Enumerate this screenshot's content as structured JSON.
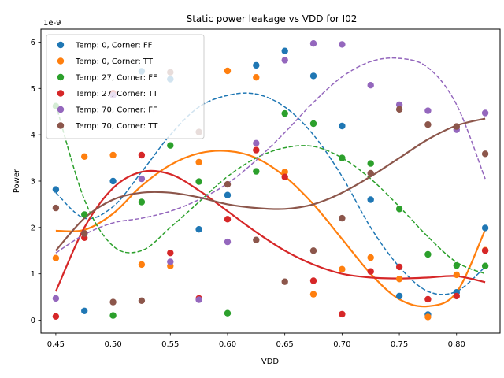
{
  "chart_data": {
    "type": "scatter",
    "title": "Static power leakage vs VDD for I02",
    "xlabel": "VDD",
    "ylabel": "Power",
    "y_offset_label": "1e-9",
    "xlim": [
      0.437,
      0.838
    ],
    "ylim": [
      -0.28,
      6.28
    ],
    "x_ticks": [
      0.45,
      0.5,
      0.55,
      0.6,
      0.65,
      0.7,
      0.75,
      0.8
    ],
    "x_tick_labels": [
      "0.45",
      "0.50",
      "0.55",
      "0.60",
      "0.65",
      "0.70",
      "0.75",
      "0.80"
    ],
    "y_ticks": [
      0,
      1,
      2,
      3,
      4,
      5,
      6
    ],
    "y_tick_labels": [
      "0",
      "1",
      "2",
      "3",
      "4",
      "5",
      "6"
    ],
    "grid": false,
    "legend_position": "top-left",
    "series": [
      {
        "name": "Temp: 0, Corner: FF",
        "color": "#1f77b4",
        "fit_style": "dashed",
        "points": [
          [
            0.45,
            2.82
          ],
          [
            0.475,
            0.2
          ],
          [
            0.5,
            3.0
          ],
          [
            0.525,
            5.37
          ],
          [
            0.55,
            5.2
          ],
          [
            0.575,
            1.96
          ],
          [
            0.6,
            2.7
          ],
          [
            0.625,
            5.5
          ],
          [
            0.65,
            5.81
          ],
          [
            0.675,
            5.27
          ],
          [
            0.7,
            4.19
          ],
          [
            0.725,
            2.6
          ],
          [
            0.75,
            0.52
          ],
          [
            0.775,
            0.12
          ],
          [
            0.8,
            0.6
          ],
          [
            0.825,
            1.99
          ]
        ],
        "fit": [
          [
            0.45,
            2.75
          ],
          [
            0.475,
            2.2
          ],
          [
            0.5,
            2.45
          ],
          [
            0.525,
            3.2
          ],
          [
            0.55,
            4.0
          ],
          [
            0.575,
            4.6
          ],
          [
            0.6,
            4.85
          ],
          [
            0.625,
            4.88
          ],
          [
            0.65,
            4.6
          ],
          [
            0.675,
            4.0
          ],
          [
            0.7,
            3.1
          ],
          [
            0.725,
            2.0
          ],
          [
            0.75,
            1.15
          ],
          [
            0.775,
            0.62
          ],
          [
            0.8,
            0.62
          ],
          [
            0.825,
            1.15
          ]
        ]
      },
      {
        "name": "Temp: 0, Corner: TT",
        "color": "#ff7f0e",
        "fit_style": "solid",
        "points": [
          [
            0.45,
            1.34
          ],
          [
            0.475,
            3.53
          ],
          [
            0.5,
            3.56
          ],
          [
            0.525,
            1.2
          ],
          [
            0.55,
            1.17
          ],
          [
            0.575,
            3.41
          ],
          [
            0.6,
            5.38
          ],
          [
            0.625,
            5.24
          ],
          [
            0.65,
            3.2
          ],
          [
            0.675,
            0.56
          ],
          [
            0.7,
            1.1
          ],
          [
            0.725,
            1.35
          ],
          [
            0.75,
            0.89
          ],
          [
            0.775,
            0.07
          ],
          [
            0.8,
            0.98
          ],
          [
            0.825,
            1.51
          ]
        ],
        "fit": [
          [
            0.45,
            1.93
          ],
          [
            0.475,
            1.95
          ],
          [
            0.5,
            2.3
          ],
          [
            0.525,
            2.9
          ],
          [
            0.55,
            3.35
          ],
          [
            0.575,
            3.6
          ],
          [
            0.6,
            3.65
          ],
          [
            0.625,
            3.5
          ],
          [
            0.65,
            3.1
          ],
          [
            0.675,
            2.5
          ],
          [
            0.7,
            1.75
          ],
          [
            0.725,
            1.0
          ],
          [
            0.75,
            0.45
          ],
          [
            0.775,
            0.3
          ],
          [
            0.8,
            0.6
          ],
          [
            0.825,
            1.95
          ]
        ]
      },
      {
        "name": "Temp: 27, Corner: FF",
        "color": "#2ca02c",
        "fit_style": "dashed",
        "points": [
          [
            0.45,
            4.62
          ],
          [
            0.475,
            2.28
          ],
          [
            0.5,
            0.1
          ],
          [
            0.525,
            2.55
          ],
          [
            0.55,
            3.77
          ],
          [
            0.575,
            2.99
          ],
          [
            0.6,
            0.15
          ],
          [
            0.625,
            3.21
          ],
          [
            0.65,
            4.46
          ],
          [
            0.675,
            4.24
          ],
          [
            0.7,
            3.5
          ],
          [
            0.725,
            3.38
          ],
          [
            0.75,
            2.4
          ],
          [
            0.775,
            1.42
          ],
          [
            0.8,
            1.18
          ],
          [
            0.825,
            1.17
          ]
        ],
        "fit": [
          [
            0.45,
            4.65
          ],
          [
            0.475,
            2.6
          ],
          [
            0.5,
            1.6
          ],
          [
            0.525,
            1.5
          ],
          [
            0.55,
            2.0
          ],
          [
            0.575,
            2.55
          ],
          [
            0.6,
            3.1
          ],
          [
            0.625,
            3.5
          ],
          [
            0.65,
            3.72
          ],
          [
            0.675,
            3.75
          ],
          [
            0.7,
            3.5
          ],
          [
            0.725,
            3.05
          ],
          [
            0.75,
            2.45
          ],
          [
            0.775,
            1.8
          ],
          [
            0.8,
            1.25
          ],
          [
            0.825,
            1.0
          ]
        ]
      },
      {
        "name": "Temp: 27, Corner: TT",
        "color": "#d62728",
        "fit_style": "solid",
        "points": [
          [
            0.45,
            0.08
          ],
          [
            0.475,
            1.78
          ],
          [
            0.5,
            4.9
          ],
          [
            0.525,
            3.56
          ],
          [
            0.55,
            1.45
          ],
          [
            0.575,
            0.47
          ],
          [
            0.6,
            2.18
          ],
          [
            0.625,
            3.67
          ],
          [
            0.65,
            3.09
          ],
          [
            0.675,
            0.85
          ],
          [
            0.7,
            0.13
          ],
          [
            0.725,
            1.05
          ],
          [
            0.75,
            1.15
          ],
          [
            0.775,
            0.45
          ],
          [
            0.8,
            0.52
          ],
          [
            0.825,
            1.5
          ]
        ],
        "fit": [
          [
            0.45,
            0.62
          ],
          [
            0.475,
            2.0
          ],
          [
            0.5,
            2.85
          ],
          [
            0.525,
            3.2
          ],
          [
            0.55,
            3.15
          ],
          [
            0.575,
            2.8
          ],
          [
            0.6,
            2.35
          ],
          [
            0.625,
            1.9
          ],
          [
            0.65,
            1.5
          ],
          [
            0.675,
            1.2
          ],
          [
            0.7,
            1.0
          ],
          [
            0.725,
            0.92
          ],
          [
            0.75,
            0.9
          ],
          [
            0.775,
            0.92
          ],
          [
            0.8,
            0.95
          ],
          [
            0.825,
            0.82
          ]
        ]
      },
      {
        "name": "Temp: 70, Corner: FF",
        "color": "#9467bd",
        "fit_style": "dashed",
        "points": [
          [
            0.45,
            0.47
          ],
          [
            0.475,
            1.87
          ],
          [
            0.5,
            4.85
          ],
          [
            0.525,
            3.05
          ],
          [
            0.55,
            1.26
          ],
          [
            0.575,
            0.44
          ],
          [
            0.6,
            1.69
          ],
          [
            0.625,
            3.82
          ],
          [
            0.65,
            5.61
          ],
          [
            0.675,
            5.97
          ],
          [
            0.7,
            5.95
          ],
          [
            0.725,
            5.07
          ],
          [
            0.75,
            4.65
          ],
          [
            0.775,
            4.52
          ],
          [
            0.8,
            4.11
          ],
          [
            0.825,
            4.47
          ]
        ],
        "fit": [
          [
            0.45,
            1.45
          ],
          [
            0.475,
            1.85
          ],
          [
            0.5,
            2.1
          ],
          [
            0.525,
            2.2
          ],
          [
            0.55,
            2.35
          ],
          [
            0.575,
            2.6
          ],
          [
            0.6,
            2.95
          ],
          [
            0.625,
            3.45
          ],
          [
            0.65,
            4.05
          ],
          [
            0.675,
            4.7
          ],
          [
            0.7,
            5.25
          ],
          [
            0.725,
            5.58
          ],
          [
            0.75,
            5.65
          ],
          [
            0.775,
            5.45
          ],
          [
            0.8,
            4.65
          ],
          [
            0.825,
            3.05
          ]
        ]
      },
      {
        "name": "Temp: 70, Corner: TT",
        "color": "#8c564b",
        "fit_style": "solid",
        "points": [
          [
            0.45,
            2.42
          ],
          [
            0.475,
            1.87
          ],
          [
            0.5,
            0.39
          ],
          [
            0.525,
            0.42
          ],
          [
            0.55,
            5.35
          ],
          [
            0.575,
            4.06
          ],
          [
            0.6,
            2.93
          ],
          [
            0.625,
            1.73
          ],
          [
            0.65,
            0.83
          ],
          [
            0.675,
            1.5
          ],
          [
            0.7,
            2.2
          ],
          [
            0.725,
            3.17
          ],
          [
            0.75,
            4.55
          ],
          [
            0.775,
            4.22
          ],
          [
            0.8,
            4.18
          ],
          [
            0.825,
            3.59
          ]
        ],
        "fit": [
          [
            0.45,
            1.5
          ],
          [
            0.475,
            2.2
          ],
          [
            0.5,
            2.6
          ],
          [
            0.525,
            2.75
          ],
          [
            0.55,
            2.75
          ],
          [
            0.575,
            2.65
          ],
          [
            0.6,
            2.5
          ],
          [
            0.625,
            2.42
          ],
          [
            0.65,
            2.4
          ],
          [
            0.675,
            2.5
          ],
          [
            0.7,
            2.75
          ],
          [
            0.725,
            3.1
          ],
          [
            0.75,
            3.5
          ],
          [
            0.775,
            3.9
          ],
          [
            0.8,
            4.2
          ],
          [
            0.825,
            4.35
          ]
        ]
      }
    ]
  }
}
